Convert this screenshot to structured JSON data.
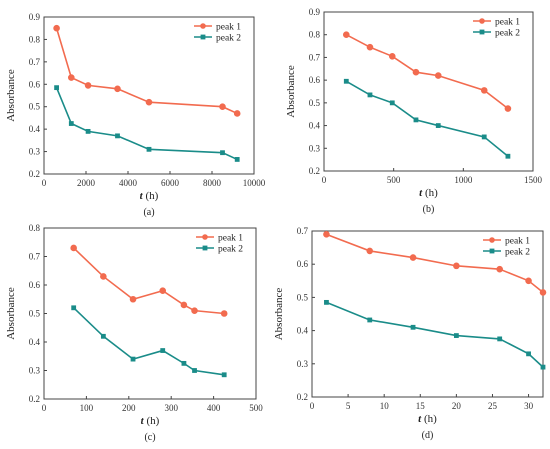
{
  "colors": {
    "peak1": "#F26B4F",
    "peak2": "#1A8C89"
  },
  "chart_data": [
    {
      "panel": "(a)",
      "type": "line",
      "xlabel_var": "t",
      "xlabel_unit": " (h)",
      "ylabel": "Absorbance",
      "xlim": [
        0,
        10000
      ],
      "ylim": [
        0.2,
        0.9
      ],
      "xticks": [
        0,
        2000,
        4000,
        6000,
        8000,
        10000
      ],
      "yticks": [
        0.2,
        0.3,
        0.4,
        0.5,
        0.6,
        0.7,
        0.8,
        0.9
      ],
      "legend_position": "top-right",
      "series": [
        {
          "name": "peak 1",
          "color": "#F26B4F",
          "marker": "circle",
          "x": [
            600,
            1300,
            2100,
            3500,
            5000,
            8500,
            9200
          ],
          "y": [
            0.85,
            0.63,
            0.595,
            0.58,
            0.52,
            0.5,
            0.47
          ]
        },
        {
          "name": "peak 2",
          "color": "#1A8C89",
          "marker": "square",
          "x": [
            600,
            1300,
            2100,
            3500,
            5000,
            8500,
            9200
          ],
          "y": [
            0.585,
            0.425,
            0.39,
            0.37,
            0.31,
            0.295,
            0.265
          ]
        }
      ]
    },
    {
      "panel": "(b)",
      "type": "line",
      "xlabel_var": "t",
      "xlabel_unit": " (h)",
      "ylabel": "Absorbance",
      "xlim": [
        0,
        1500
      ],
      "ylim": [
        0.2,
        0.9
      ],
      "xticks": [
        0,
        500,
        1000,
        1500
      ],
      "yticks": [
        0.2,
        0.3,
        0.4,
        0.5,
        0.6,
        0.7,
        0.8,
        0.9
      ],
      "legend_position": "top-right",
      "series": [
        {
          "name": "peak 1",
          "color": "#F26B4F",
          "marker": "circle",
          "x": [
            160,
            330,
            490,
            660,
            820,
            1150,
            1320
          ],
          "y": [
            0.8,
            0.745,
            0.705,
            0.635,
            0.62,
            0.555,
            0.475
          ]
        },
        {
          "name": "peak 2",
          "color": "#1A8C89",
          "marker": "square",
          "x": [
            160,
            330,
            490,
            660,
            820,
            1150,
            1320
          ],
          "y": [
            0.595,
            0.535,
            0.5,
            0.425,
            0.4,
            0.35,
            0.265
          ]
        }
      ]
    },
    {
      "panel": "(c)",
      "type": "line",
      "xlabel_var": "t",
      "xlabel_unit": " (h)",
      "ylabel": "Absorbance",
      "xlim": [
        0,
        500
      ],
      "ylim": [
        0.2,
        0.8
      ],
      "xticks": [
        0,
        100,
        200,
        300,
        400,
        500
      ],
      "yticks": [
        0.2,
        0.3,
        0.4,
        0.5,
        0.6,
        0.7,
        0.8
      ],
      "legend_position": "top-right",
      "series": [
        {
          "name": "peak 1",
          "color": "#F26B4F",
          "marker": "circle",
          "x": [
            70,
            140,
            210,
            280,
            330,
            355,
            425
          ],
          "y": [
            0.73,
            0.63,
            0.55,
            0.58,
            0.53,
            0.51,
            0.5
          ]
        },
        {
          "name": "peak 2",
          "color": "#1A8C89",
          "marker": "square",
          "x": [
            70,
            140,
            210,
            280,
            330,
            355,
            425
          ],
          "y": [
            0.52,
            0.42,
            0.34,
            0.37,
            0.325,
            0.3,
            0.285
          ]
        }
      ]
    },
    {
      "panel": "(d)",
      "type": "line",
      "xlabel_var": "t",
      "xlabel_unit": " (h)",
      "ylabel": "Absorbance",
      "xlim": [
        0,
        32
      ],
      "ylim": [
        0.2,
        0.7
      ],
      "xticks": [
        0,
        5,
        10,
        15,
        20,
        25,
        30
      ],
      "yticks": [
        0.2,
        0.3,
        0.4,
        0.5,
        0.6,
        0.7
      ],
      "legend_position": "top-right",
      "series": [
        {
          "name": "peak 1",
          "color": "#F26B4F",
          "marker": "circle",
          "x": [
            2,
            8,
            14,
            20,
            26,
            30,
            32
          ],
          "y": [
            0.69,
            0.64,
            0.62,
            0.595,
            0.585,
            0.55,
            0.515
          ]
        },
        {
          "name": "peak 2",
          "color": "#1A8C89",
          "marker": "square",
          "x": [
            2,
            8,
            14,
            20,
            26,
            30,
            32
          ],
          "y": [
            0.485,
            0.432,
            0.41,
            0.385,
            0.375,
            0.33,
            0.29
          ]
        }
      ]
    }
  ]
}
